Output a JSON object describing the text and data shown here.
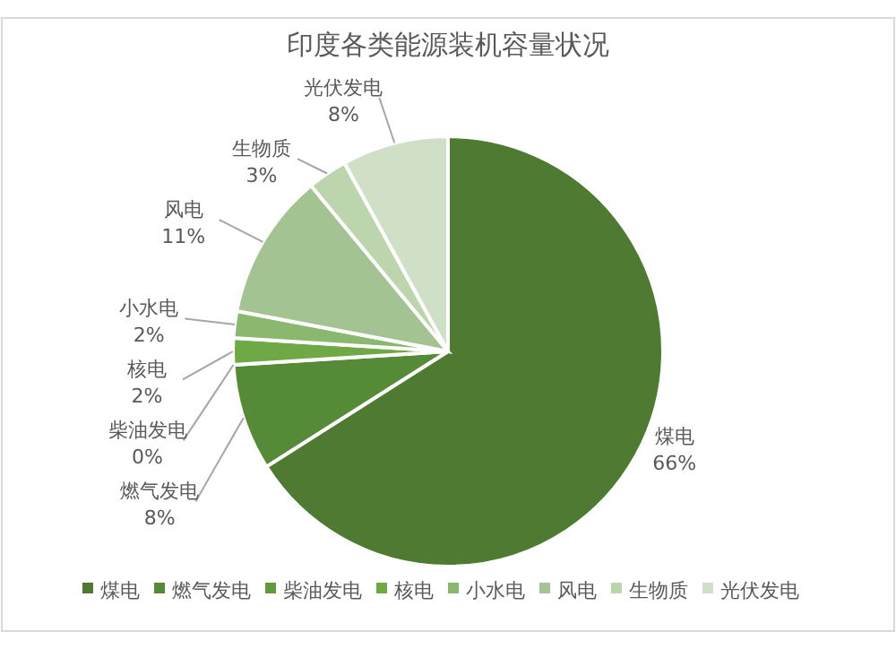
{
  "chart_data": {
    "type": "pie",
    "title": "印度各类能源装机容量状况",
    "categories": [
      "煤电",
      "燃气发电",
      "柴油发电",
      "核电",
      "小水电",
      "风电",
      "生物质",
      "光伏发电"
    ],
    "values": [
      66,
      8,
      0,
      2,
      2,
      11,
      3,
      8
    ],
    "colors": [
      "#4e7a31",
      "#558a36",
      "#5f9a3c",
      "#6ea946",
      "#8bb86f",
      "#a3c492",
      "#bcd5ad",
      "#d0e0c6"
    ],
    "value_labels": [
      "66%",
      "8%",
      "0%",
      "2%",
      "2%",
      "11%",
      "3%",
      "8%"
    ],
    "legend": "bottom"
  }
}
